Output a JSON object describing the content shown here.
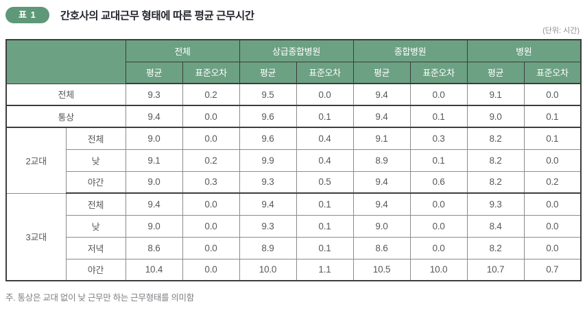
{
  "header": {
    "badge": "표 1",
    "title": "간호사의 교대근무 형태에 따른 평균 근무시간",
    "unit_note": "(단위: 시간)"
  },
  "table": {
    "column_groups": [
      {
        "label": "전체"
      },
      {
        "label": "상급종합병원"
      },
      {
        "label": "종합병원"
      },
      {
        "label": "병원"
      }
    ],
    "sub_header": {
      "mean": "평균",
      "se": "표준오차"
    },
    "rows": [
      {
        "label": "전체",
        "values": [
          "9.3",
          "0.2",
          "9.5",
          "0.0",
          "9.4",
          "0.0",
          "9.1",
          "0.0"
        ]
      },
      {
        "label": "통상",
        "values": [
          "9.4",
          "0.0",
          "9.6",
          "0.1",
          "9.4",
          "0.1",
          "9.0",
          "0.1"
        ]
      },
      {
        "group": "2교대",
        "label": "전체",
        "values": [
          "9.0",
          "0.0",
          "9.6",
          "0.4",
          "9.1",
          "0.3",
          "8.2",
          "0.1"
        ]
      },
      {
        "group": "2교대",
        "label": "낮",
        "values": [
          "9.1",
          "0.2",
          "9.9",
          "0.4",
          "8.9",
          "0.1",
          "8.2",
          "0.0"
        ]
      },
      {
        "group": "2교대",
        "label": "야간",
        "values": [
          "9.0",
          "0.3",
          "9.3",
          "0.5",
          "9.4",
          "0.6",
          "8.2",
          "0.2"
        ]
      },
      {
        "group": "3교대",
        "label": "전체",
        "values": [
          "9.4",
          "0.0",
          "9.4",
          "0.1",
          "9.4",
          "0.0",
          "9.3",
          "0.0"
        ]
      },
      {
        "group": "3교대",
        "label": "낮",
        "values": [
          "9.0",
          "0.0",
          "9.3",
          "0.1",
          "9.0",
          "0.0",
          "8.4",
          "0.0"
        ]
      },
      {
        "group": "3교대",
        "label": "저녁",
        "values": [
          "8.6",
          "0.0",
          "8.9",
          "0.1",
          "8.6",
          "0.0",
          "8.2",
          "0.0"
        ]
      },
      {
        "group": "3교대",
        "label": "야간",
        "values": [
          "10.4",
          "0.0",
          "10.0",
          "1.1",
          "10.5",
          "10.0",
          "10.7",
          "0.7"
        ]
      }
    ]
  },
  "footnote": "주. 통상은 교대 없이 낮 근무만 하는 근무형태를 의미함",
  "colors": {
    "header_green": "#6ca183",
    "badge_green": "#5e9879",
    "border_dark": "#3c3c3c",
    "border_light": "#8a8a8a"
  }
}
